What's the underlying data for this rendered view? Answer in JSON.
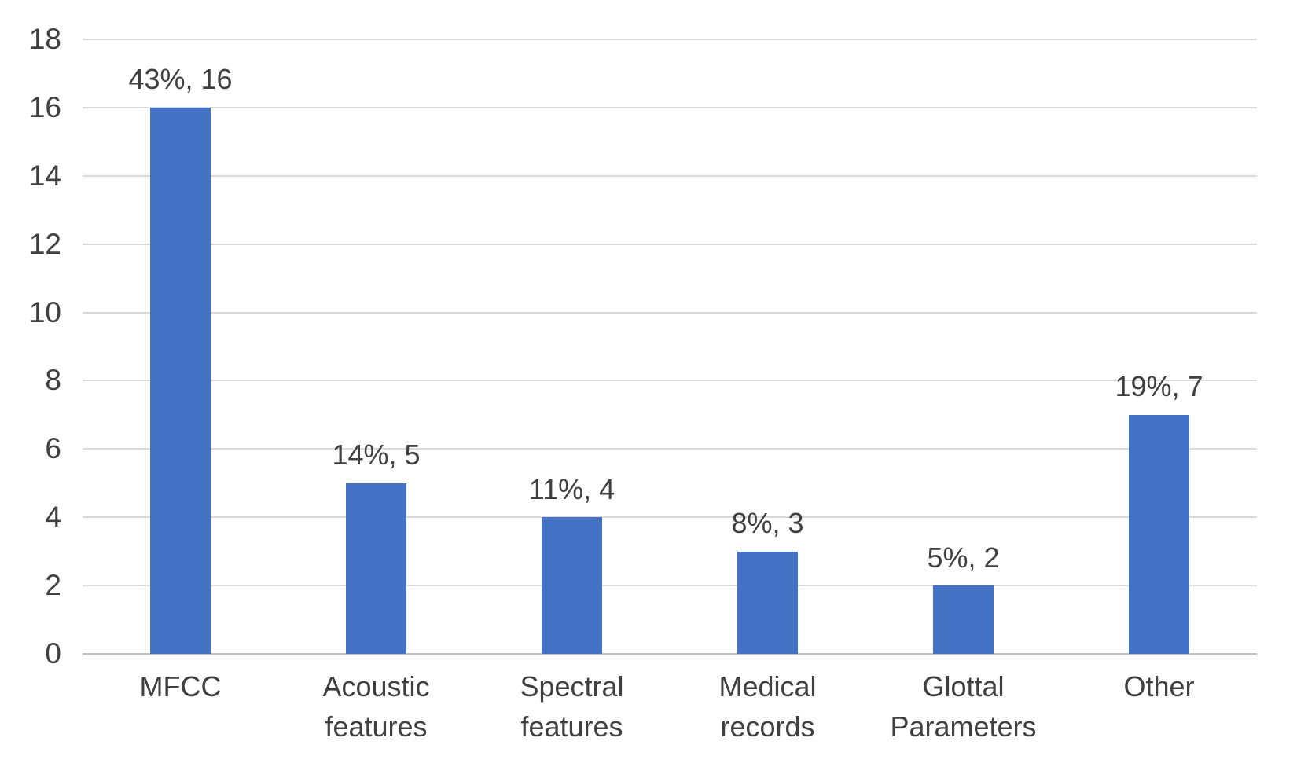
{
  "chart_data": {
    "type": "bar",
    "title": "",
    "xlabel": "",
    "ylabel": "",
    "categories": [
      "MFCC",
      "Acoustic features",
      "Spectral features",
      "Medical records",
      "Glottal Parameters",
      "Other"
    ],
    "category_lines": [
      [
        "MFCC"
      ],
      [
        "Acoustic",
        "features"
      ],
      [
        "Spectral",
        "features"
      ],
      [
        "Medical",
        "records"
      ],
      [
        "Glottal",
        "Parameters"
      ],
      [
        "Other"
      ]
    ],
    "values": [
      16,
      5,
      4,
      3,
      2,
      7
    ],
    "percentages": [
      "43%",
      "14%",
      "11%",
      "8%",
      "5%",
      "19%"
    ],
    "data_labels": [
      "43%, 16",
      "14%, 5",
      "11%, 4",
      "8%, 3",
      "5%, 2",
      "19%, 7"
    ],
    "ylim": [
      0,
      18
    ],
    "yticks": [
      0,
      2,
      4,
      6,
      8,
      10,
      12,
      14,
      16,
      18
    ],
    "grid": true,
    "legend": "none",
    "bar_color": "#4472c4",
    "grid_color": "#d9d9d9",
    "axis_line_color": "#c3c3c3",
    "text_color": "#404040",
    "background_color": "#ffffff"
  }
}
